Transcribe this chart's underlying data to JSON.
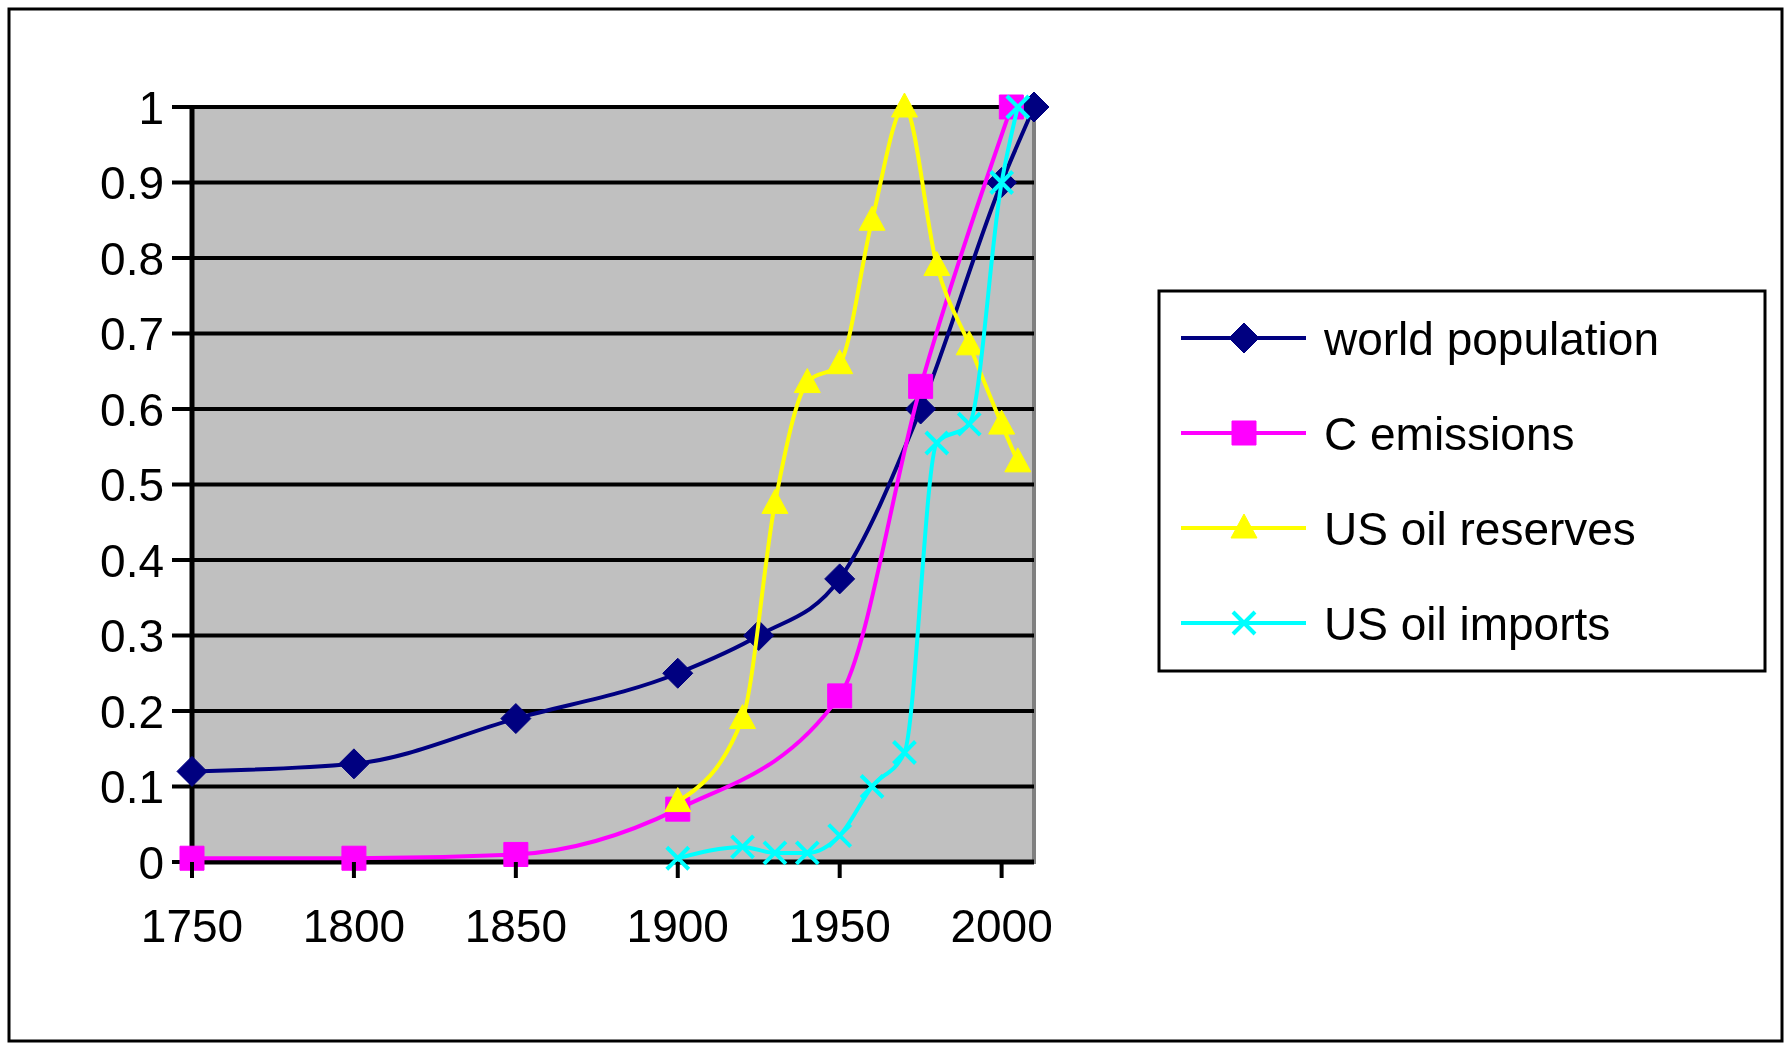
{
  "chart_data": {
    "type": "line",
    "xlim": [
      1750,
      2010
    ],
    "xticks": [
      1750,
      1800,
      1850,
      1900,
      1950,
      2000
    ],
    "ylim": [
      0,
      1
    ],
    "yticks": [
      0,
      0.1,
      0.2,
      0.3,
      0.4,
      0.5,
      0.6,
      0.7,
      0.8,
      0.9,
      1
    ],
    "grid": "y",
    "legend": "right",
    "line_style": "solid",
    "series": [
      {
        "name": "world population",
        "color": "#000080",
        "marker": "diamond",
        "x": [
          1750,
          1800,
          1850,
          1900,
          1925,
          1950,
          1975,
          2000,
          2010
        ],
        "values": [
          0.12,
          0.13,
          0.19,
          0.25,
          0.3,
          0.375,
          0.6,
          0.9,
          1
        ]
      },
      {
        "name": "C emissions",
        "color": "#ff00ff",
        "marker": "square",
        "x": [
          1750,
          1800,
          1850,
          1900,
          1950,
          1975,
          2003
        ],
        "values": [
          0.005,
          0.005,
          0.01,
          0.07,
          0.22,
          0.63,
          1
        ]
      },
      {
        "name": "US oil reserves",
        "color": "#ffff00",
        "marker": "triangle",
        "x": [
          1900,
          1920,
          1930,
          1940,
          1950,
          1960,
          1970,
          1980,
          1990,
          2000,
          2005
        ],
        "values": [
          0.08,
          0.19,
          0.475,
          0.635,
          0.66,
          0.85,
          1,
          0.79,
          0.685,
          0.58,
          0.53
        ]
      },
      {
        "name": "US oil imports",
        "color": "#00ffff",
        "marker": "cross",
        "x": [
          1900,
          1920,
          1930,
          1940,
          1950,
          1960,
          1970,
          1980,
          1990,
          2000,
          2005
        ],
        "values": [
          0.005,
          0.02,
          0.012,
          0.012,
          0.035,
          0.1,
          0.145,
          0.555,
          0.58,
          0.9,
          1
        ]
      }
    ]
  }
}
